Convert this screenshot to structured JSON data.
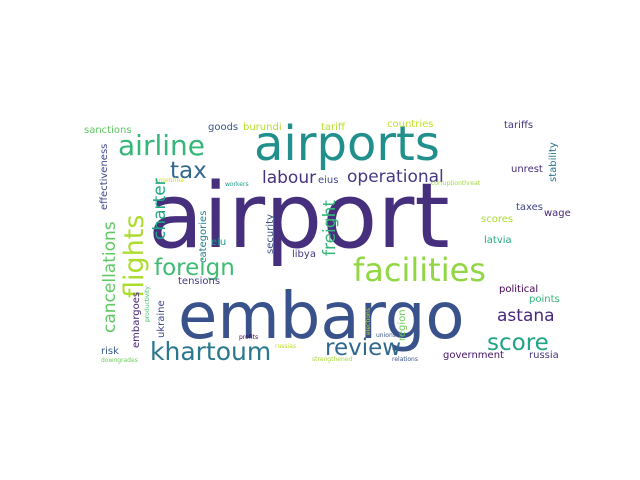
{
  "word_cloud": {
    "words": [
      {
        "text": "airport",
        "color": "#46307e"
      },
      {
        "text": "embargo",
        "color": "#3a528b"
      },
      {
        "text": "airports",
        "color": "#21908d"
      },
      {
        "text": "facilities",
        "color": "#90d743"
      },
      {
        "text": "flights",
        "color": "#addc30"
      },
      {
        "text": "khartoum",
        "color": "#2a788e"
      },
      {
        "text": "airline",
        "color": "#35b779"
      },
      {
        "text": "foreign",
        "color": "#3fbc73"
      },
      {
        "text": "review",
        "color": "#31688e"
      },
      {
        "text": "score",
        "color": "#20a486"
      },
      {
        "text": "tax",
        "color": "#31688e"
      },
      {
        "text": "cancellations",
        "color": "#5ec962"
      },
      {
        "text": "operational",
        "color": "#443983"
      },
      {
        "text": "labour",
        "color": "#46327e"
      },
      {
        "text": "charter",
        "color": "#22a884"
      },
      {
        "text": "freight",
        "color": "#35b779"
      },
      {
        "text": "astana",
        "color": "#482878"
      },
      {
        "text": "embargoes",
        "color": "#482475"
      },
      {
        "text": "security",
        "color": "#3b528b"
      },
      {
        "text": "categories",
        "color": "#277f8e"
      },
      {
        "text": "government",
        "color": "#471365"
      },
      {
        "text": "political",
        "color": "#440154"
      },
      {
        "text": "sanctions",
        "color": "#5ec962"
      },
      {
        "text": "goods",
        "color": "#3b528b"
      },
      {
        "text": "burundi",
        "color": "#b5de2b"
      },
      {
        "text": "tariff",
        "color": "#b8de29"
      },
      {
        "text": "countries",
        "color": "#c2df23"
      },
      {
        "text": "tariffs",
        "color": "#46337e"
      },
      {
        "text": "stability",
        "color": "#2c738e"
      },
      {
        "text": "effectiveness",
        "color": "#3e4989"
      },
      {
        "text": "argentina",
        "color": "#d2e21b"
      },
      {
        "text": "workers",
        "color": "#1f9e89"
      },
      {
        "text": "eius",
        "color": "#3e4989"
      },
      {
        "text": "unrest",
        "color": "#472d7b"
      },
      {
        "text": "corruptionthreat",
        "color": "#a2da37"
      },
      {
        "text": "taxes",
        "color": "#404688"
      },
      {
        "text": "wage",
        "color": "#482576"
      },
      {
        "text": "scores",
        "color": "#a8db34"
      },
      {
        "text": "eiu",
        "color": "#1f968b"
      },
      {
        "text": "latvia",
        "color": "#25ac82"
      },
      {
        "text": "libya",
        "color": "#453581"
      },
      {
        "text": "points",
        "color": "#34b679"
      },
      {
        "text": "productivity",
        "color": "#4ac16d"
      },
      {
        "text": "ukraine",
        "color": "#404688"
      },
      {
        "text": "tensions",
        "color": "#443983"
      },
      {
        "text": "profits",
        "color": "#440154"
      },
      {
        "text": "russias",
        "color": "#c0df25"
      },
      {
        "text": "unions",
        "color": "#3b528b"
      },
      {
        "text": "elections",
        "color": "#bddf26"
      },
      {
        "text": "region",
        "color": "#6ccd5a"
      },
      {
        "text": "risk",
        "color": "#38598c"
      },
      {
        "text": "downgrades",
        "color": "#6ece58"
      },
      {
        "text": "strengthened",
        "color": "#a8db34"
      },
      {
        "text": "relations",
        "color": "#39568c"
      },
      {
        "text": "russia",
        "color": "#46337e"
      }
    ]
  }
}
